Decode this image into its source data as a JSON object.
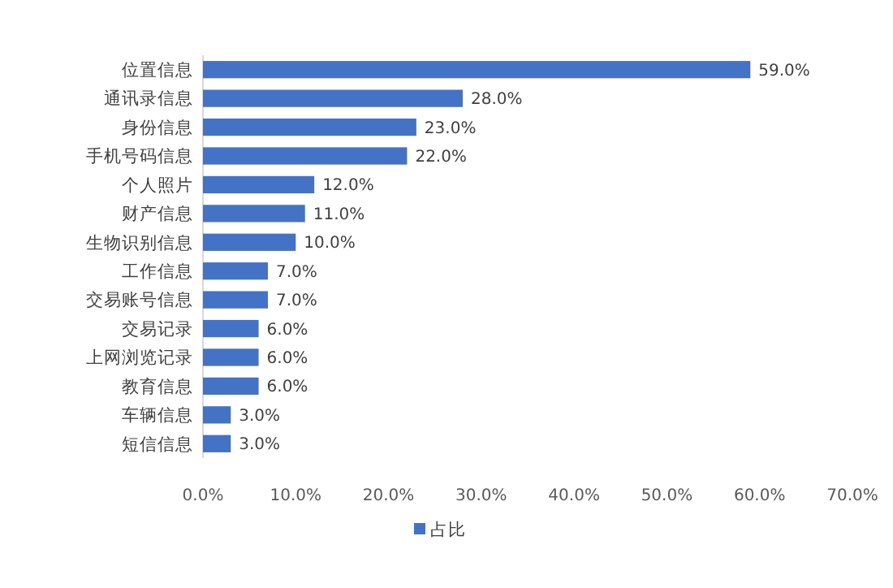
{
  "chart_data": {
    "type": "bar",
    "orientation": "horizontal",
    "categories": [
      "位置信息",
      "通讯录信息",
      "身份信息",
      "手机号码信息",
      "个人照片",
      "财产信息",
      "生物识别信息",
      "工作信息",
      "交易账号信息",
      "交易记录",
      "上网浏览记录",
      "教育信息",
      "车辆信息",
      "短信信息"
    ],
    "series": [
      {
        "name": "占比",
        "color": "#4472c4",
        "values": [
          59,
          28,
          23,
          22,
          12,
          11,
          10,
          7,
          7,
          6,
          6,
          6,
          3,
          3
        ],
        "value_labels": [
          "59.0%",
          "28.0%",
          "23.0%",
          "22.0%",
          "12.0%",
          "11.0%",
          "10.0%",
          "7.0%",
          "7.0%",
          "6.0%",
          "6.0%",
          "6.0%",
          "3.0%",
          "3.0%"
        ]
      }
    ],
    "xlim": [
      0,
      70
    ],
    "xticks": [
      {
        "value": 0,
        "label": "0.0%"
      },
      {
        "value": 10,
        "label": "10.0%"
      },
      {
        "value": 20,
        "label": "20.0%"
      },
      {
        "value": 30,
        "label": "30.0%"
      },
      {
        "value": 40,
        "label": "40.0%"
      },
      {
        "value": 50,
        "label": "50.0%"
      },
      {
        "value": 60,
        "label": "60.0%"
      },
      {
        "value": 70,
        "label": "70.0%"
      }
    ],
    "grid": false,
    "legend": "bottom"
  }
}
